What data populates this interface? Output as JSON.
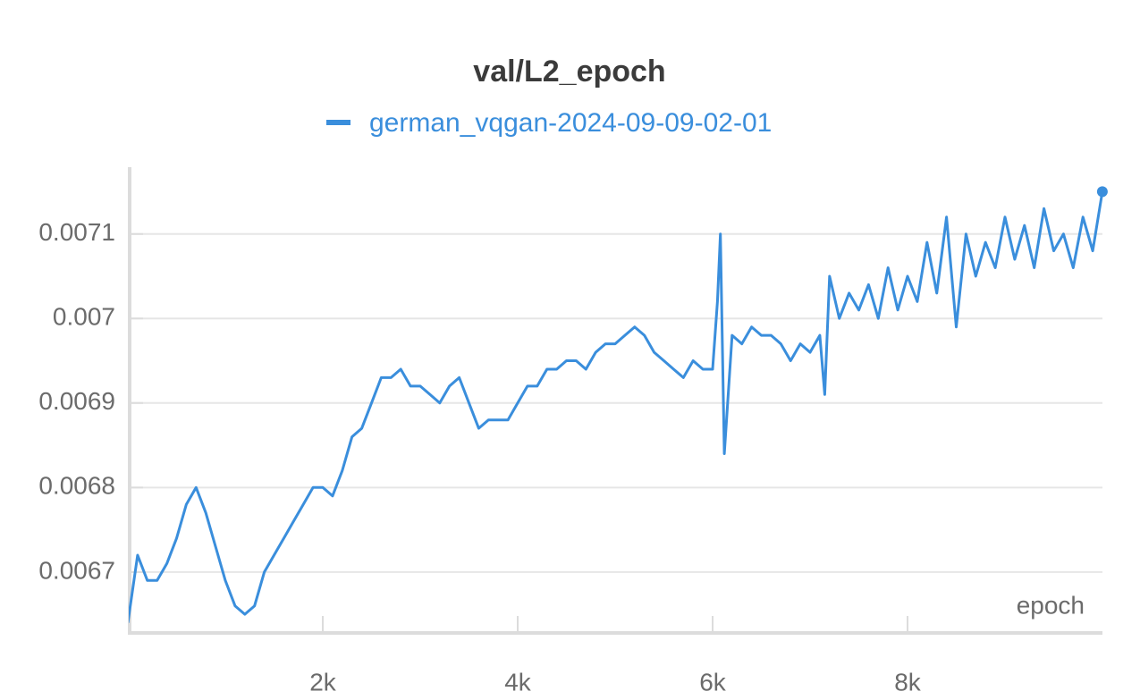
{
  "chart_data": {
    "type": "line",
    "title": "val/L2_epoch",
    "xlabel": "epoch",
    "x": [
      0,
      100,
      200,
      300,
      400,
      500,
      600,
      700,
      800,
      900,
      1000,
      1100,
      1200,
      1300,
      1400,
      1500,
      1600,
      1700,
      1800,
      1900,
      2000,
      2100,
      2200,
      2300,
      2400,
      2500,
      2600,
      2700,
      2800,
      2900,
      3000,
      3100,
      3200,
      3300,
      3400,
      3500,
      3600,
      3700,
      3800,
      3900,
      4000,
      4100,
      4200,
      4300,
      4400,
      4500,
      4600,
      4700,
      4800,
      4900,
      5000,
      5100,
      5200,
      5300,
      5400,
      5500,
      5600,
      5700,
      5800,
      5900,
      6000,
      6050,
      6080,
      6120,
      6200,
      6300,
      6400,
      6500,
      6600,
      6700,
      6800,
      6900,
      7000,
      7100,
      7150,
      7200,
      7300,
      7400,
      7500,
      7600,
      7700,
      7800,
      7900,
      8000,
      8100,
      8200,
      8300,
      8400,
      8500,
      8600,
      8700,
      8800,
      8900,
      9000,
      9100,
      9200,
      9300,
      9400,
      9500,
      9600,
      9700,
      9800,
      9900,
      9999
    ],
    "series": [
      {
        "name": "german_vqgan-2024-09-09-02-01",
        "color": "#3a8edc",
        "values": [
          0.00664,
          0.00672,
          0.00669,
          0.00669,
          0.00671,
          0.00674,
          0.00678,
          0.0068,
          0.00677,
          0.00673,
          0.00669,
          0.00666,
          0.00665,
          0.00666,
          0.0067,
          0.00672,
          0.00674,
          0.00676,
          0.00678,
          0.0068,
          0.0068,
          0.00679,
          0.00682,
          0.00686,
          0.00687,
          0.0069,
          0.00693,
          0.00693,
          0.00694,
          0.00692,
          0.00692,
          0.00691,
          0.0069,
          0.00692,
          0.00693,
          0.0069,
          0.00687,
          0.00688,
          0.00688,
          0.00688,
          0.0069,
          0.00692,
          0.00692,
          0.00694,
          0.00694,
          0.00695,
          0.00695,
          0.00694,
          0.00696,
          0.00697,
          0.00697,
          0.00698,
          0.00699,
          0.00698,
          0.00696,
          0.00695,
          0.00694,
          0.00693,
          0.00695,
          0.00694,
          0.00694,
          0.00702,
          0.0071,
          0.00684,
          0.00698,
          0.00697,
          0.00699,
          0.00698,
          0.00698,
          0.00697,
          0.00695,
          0.00697,
          0.00696,
          0.00698,
          0.00691,
          0.00705,
          0.007,
          0.00703,
          0.00701,
          0.00704,
          0.007,
          0.00706,
          0.00701,
          0.00705,
          0.00702,
          0.00709,
          0.00703,
          0.00712,
          0.00699,
          0.0071,
          0.00705,
          0.00709,
          0.00706,
          0.00712,
          0.00707,
          0.00711,
          0.00706,
          0.00713,
          0.00708,
          0.0071,
          0.00706,
          0.00712,
          0.00708,
          0.00715
        ]
      }
    ],
    "xlim": [
      0,
      10000
    ],
    "xticks": [
      {
        "value": 2000,
        "label": "2k"
      },
      {
        "value": 4000,
        "label": "4k"
      },
      {
        "value": 6000,
        "label": "6k"
      },
      {
        "value": 8000,
        "label": "8k"
      }
    ],
    "ylim": [
      0.006629,
      0.007179
    ],
    "yticks": [
      0.0067,
      0.0068,
      0.0069,
      0.007,
      0.0071
    ],
    "grid": true
  }
}
